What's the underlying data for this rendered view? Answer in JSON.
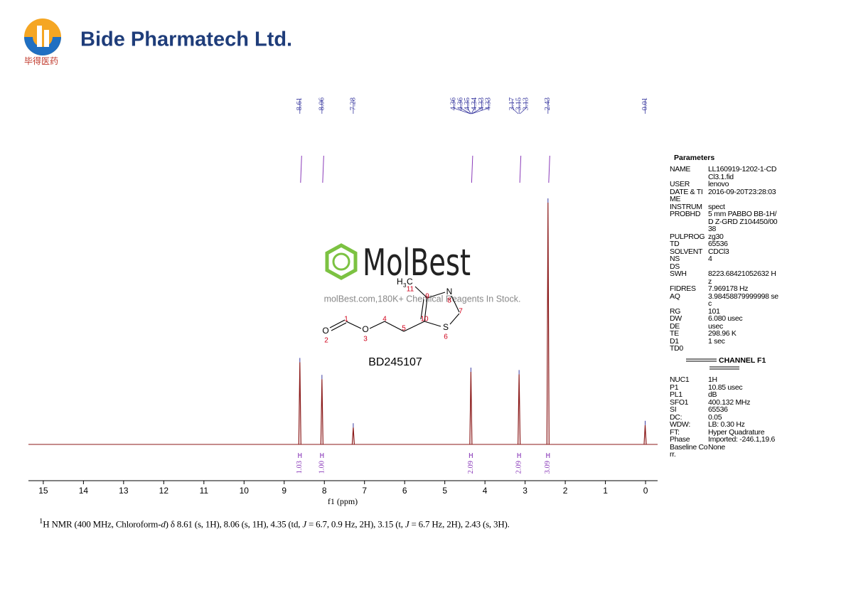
{
  "header": {
    "company": "Bide Pharmatech Ltd.",
    "company_cn": "毕得医药"
  },
  "chart_data": {
    "type": "spectrum",
    "xlabel": "f1 (ppm)",
    "xlim": [
      15.37,
      -0.3
    ],
    "xticks": [
      15,
      14,
      13,
      12,
      11,
      10,
      9,
      8,
      7,
      6,
      5,
      4,
      3,
      2,
      1,
      0
    ],
    "ylim": [
      0,
      100
    ],
    "color": "#8b1a1a",
    "x": [
      8.61,
      8.06,
      7.28,
      4.35,
      3.15,
      2.43,
      0.01
    ],
    "values": [
      34,
      27,
      7,
      30,
      29,
      100,
      8
    ],
    "peak_labels": [
      8.61,
      8.06,
      7.28,
      4.36,
      4.36,
      4.35,
      4.34,
      4.33,
      4.33,
      3.17,
      3.15,
      3.13,
      2.43,
      0.01
    ],
    "label_color": "#3a3aa0",
    "integrals": {
      "x": [
        8.61,
        8.06,
        4.35,
        3.15,
        2.43
      ],
      "values": [
        1.03,
        1,
        2.09,
        2.09,
        3.09
      ],
      "value_labels": [
        "1.03",
        "1.00",
        "2.09",
        "2.09",
        "3.09"
      ],
      "color": "#8a3ab9"
    }
  },
  "watermark": {
    "brand": "MolBest",
    "text": "molBest.com,180K+ Chemical Reagents In Stock."
  },
  "structure": {
    "code": "BD245107",
    "atoms": [
      "O",
      "O",
      "N",
      "S",
      "H",
      "3",
      "C"
    ],
    "numbers": [
      "1",
      "2",
      "3",
      "4",
      "5",
      "6",
      "7",
      "8",
      "9",
      "10",
      "11"
    ]
  },
  "parameters": {
    "title": "Parameters",
    "rows": [
      [
        "NAME",
        "LL160919-1202-1-CDCl3.1.fid"
      ],
      [
        "USER",
        "lenovo"
      ],
      [
        "DATE & TIME",
        "2016-09-20T23:28:03"
      ],
      [
        "INSTRUM",
        "spect"
      ],
      [
        "PROBHD",
        "5 mm PABBO BB-1H/D Z-GRD Z104450/0038"
      ],
      [
        "PULPROG",
        "zg30"
      ],
      [
        "TD",
        "65536"
      ],
      [
        "SOLVENT",
        "CDCl3"
      ],
      [
        "NS",
        "4"
      ],
      [
        "DS"
      ],
      [
        "SWH",
        "8223.68421052632 Hz"
      ],
      [
        "FIDRES",
        "7.969178 Hz"
      ],
      [
        "AQ",
        "3.98458879999998 sec"
      ],
      [
        "RG",
        "101"
      ],
      [
        "DW",
        "6.080 usec"
      ],
      [
        "DE",
        "usec"
      ],
      [
        "TE",
        "298.96 K"
      ],
      [
        "D1",
        "1 sec"
      ],
      [
        "TD0"
      ]
    ],
    "channel": "CHANNEL F1",
    "rows2": [
      [
        "NUC1",
        "1H"
      ],
      [
        "P1",
        "10.85 usec"
      ],
      [
        "PL1",
        "dB"
      ],
      [
        "SFO1",
        "400.132 MHz"
      ],
      [
        "SI",
        "65536"
      ],
      [
        "DC:",
        "0.05"
      ],
      [
        "WDW:",
        "LB: 0.30 Hz"
      ],
      [
        "FT:",
        "Hyper Quadrature"
      ],
      [
        "Phase",
        "Imported: -246.1,19.6"
      ],
      [
        "Baseline Corr.",
        "None"
      ]
    ]
  },
  "caption": [
    "1",
    "H NMR (400 MHz, Chloroform-",
    "d",
    ") δ 8.61 (s, 1H), 8.06 (s, 1H), 4.35 (td, ",
    "J",
    " = 6.7, 0.9 Hz, 2H), 3.15 (t, ",
    "J",
    " = 6.7 Hz, 2H), 2.43 (s, 3H)."
  ]
}
